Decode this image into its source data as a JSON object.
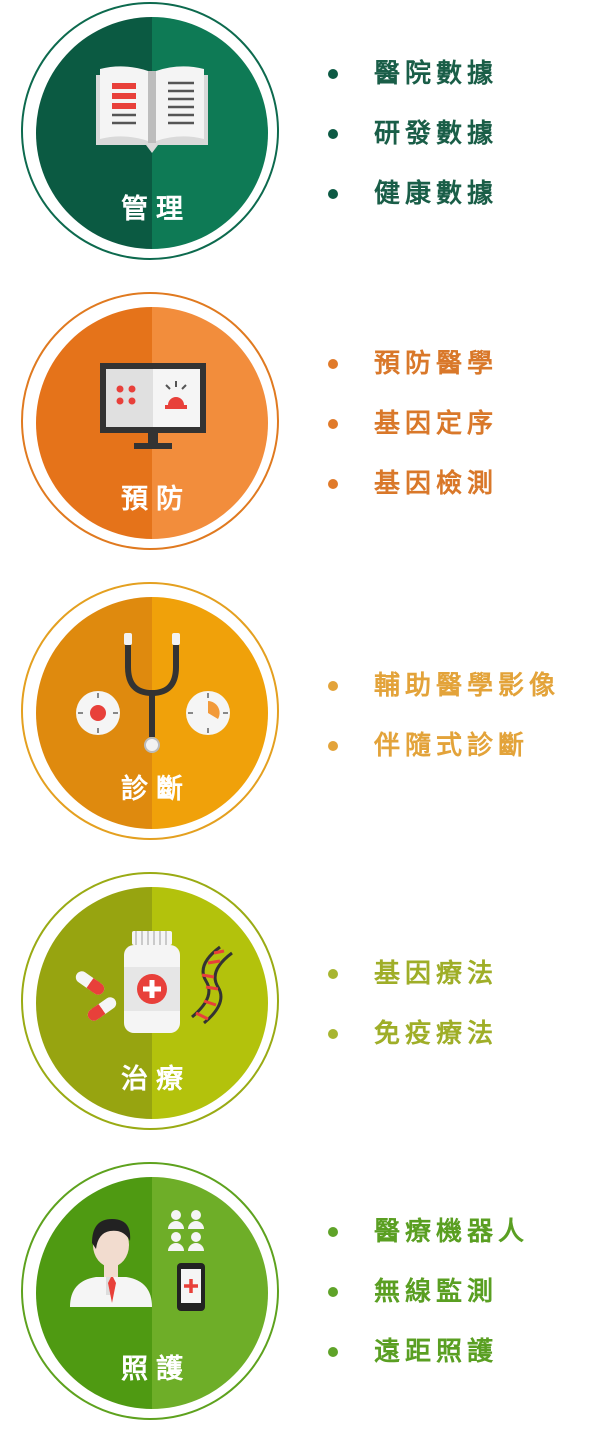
{
  "sections": [
    {
      "title": "管理",
      "icon": "book-icon",
      "colors": {
        "ring": "#0d6a4e",
        "left": "#0b5a42",
        "right": "#0e7a55",
        "text": "#1a5e48",
        "dot": "#0d5a44"
      },
      "items": [
        "醫院數據",
        "研發數據",
        "健康數據"
      ]
    },
    {
      "title": "預防",
      "icon": "monitor-alarm-icon",
      "colors": {
        "ring": "#e07a20",
        "left": "#e5731a",
        "right": "#f28d3c",
        "text": "#d9782a",
        "dot": "#e07a2a"
      },
      "items": [
        "預防醫學",
        "基因定序",
        "基因檢測"
      ]
    },
    {
      "title": "診斷",
      "icon": "stethoscope-icon",
      "colors": {
        "ring": "#e4a020",
        "left": "#df8a0e",
        "right": "#f0a10a",
        "text": "#e3a33a",
        "dot": "#e3a33a"
      },
      "items": [
        "輔助醫學影像",
        "伴隨式診斷"
      ]
    },
    {
      "title": "治療",
      "icon": "medicine-dna-icon",
      "colors": {
        "ring": "#9aab14",
        "left": "#97a410",
        "right": "#b3c20c",
        "text": "#9fae28",
        "dot": "#a7b530"
      },
      "items": [
        "基因療法",
        "免疫療法"
      ]
    },
    {
      "title": "照護",
      "icon": "doctor-phone-icon",
      "colors": {
        "ring": "#5ea21e",
        "left": "#4f9a12",
        "right": "#6eae28",
        "text": "#5a9f22",
        "dot": "#5fa329"
      },
      "items": [
        "醫療機器人",
        "無線監測",
        "遠距照護"
      ]
    }
  ]
}
